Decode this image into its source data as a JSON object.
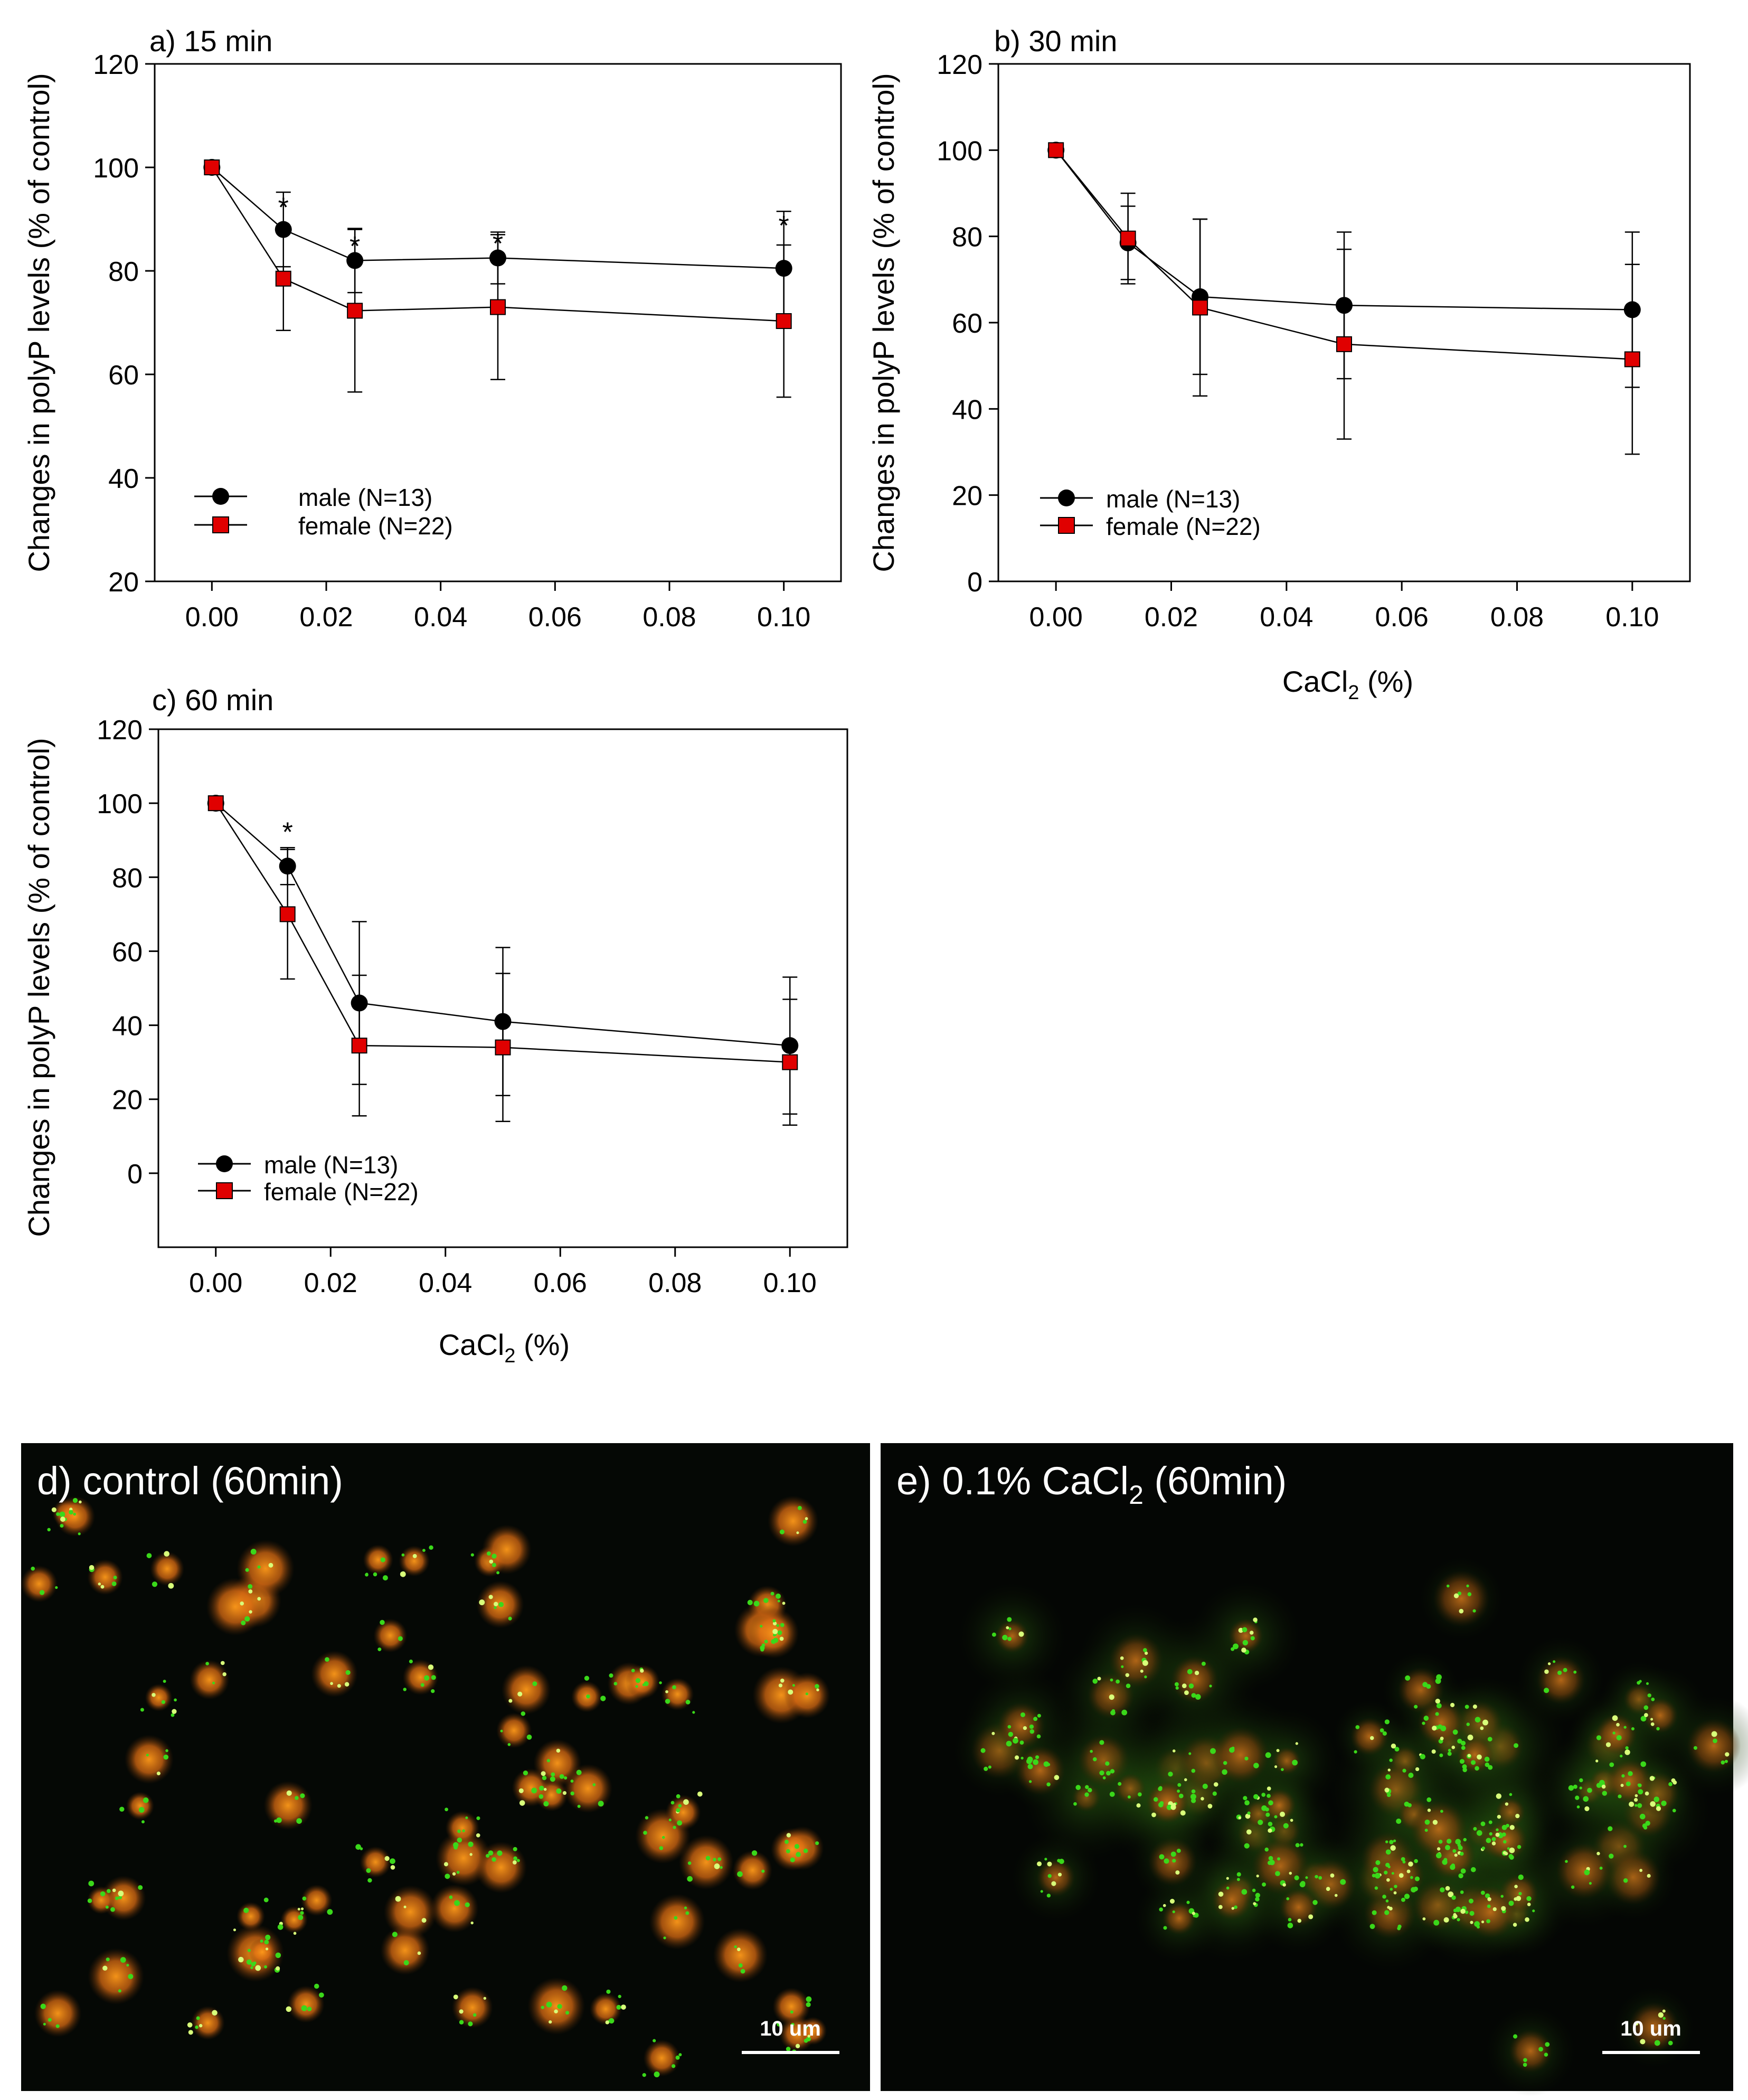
{
  "chart_data": [
    {
      "type": "line",
      "panel_label": "a) 15 min",
      "xlabel": "",
      "ylabel": "Changes in polyP levels (% of control)",
      "xlim": [
        -0.01,
        0.11
      ],
      "ylim": [
        20,
        120
      ],
      "xticks": [
        "0.00",
        "0.02",
        "0.04",
        "0.06",
        "0.08",
        "0.10"
      ],
      "yticks": [
        "20",
        "40",
        "60",
        "80",
        "100",
        "120"
      ],
      "x": [
        0,
        0.0125,
        0.025,
        0.05,
        0.1
      ],
      "series": [
        {
          "name": "male (N=13)",
          "marker": "circle",
          "color": "#000000",
          "values": [
            100,
            88,
            82,
            82.5,
            80.5
          ],
          "err": [
            0,
            7.2,
            6.2,
            5,
            11
          ]
        },
        {
          "name": "female (N=22)",
          "marker": "square",
          "color": "#e00000",
          "values": [
            100,
            78.5,
            72.3,
            73,
            70.3
          ],
          "err": [
            0,
            10,
            15.7,
            14,
            14.7
          ]
        }
      ],
      "annotations": [
        {
          "x": 0.0125,
          "y": 92.5,
          "text": "*"
        },
        {
          "x": 0.025,
          "y": 85,
          "text": "*"
        },
        {
          "x": 0.05,
          "y": 85.5,
          "text": "*"
        },
        {
          "x": 0.1,
          "y": 89,
          "text": "*"
        }
      ],
      "legend": "bottom-left"
    },
    {
      "type": "line",
      "panel_label": "b) 30 min",
      "xlabel": "CaCl2 (%)",
      "ylabel": "Changes in polyP levels (% of control)",
      "xlim": [
        -0.01,
        0.11
      ],
      "ylim": [
        0,
        120
      ],
      "xticks": [
        "0.00",
        "0.02",
        "0.04",
        "0.06",
        "0.08",
        "0.10"
      ],
      "yticks": [
        "0",
        "20",
        "40",
        "60",
        "80",
        "100",
        "120"
      ],
      "x": [
        0,
        0.0125,
        0.025,
        0.05,
        0.1
      ],
      "series": [
        {
          "name": "male (N=13)",
          "marker": "circle",
          "color": "#000000",
          "values": [
            100,
            78.5,
            66,
            64,
            63
          ],
          "err": [
            0,
            8.5,
            18,
            17,
            18
          ]
        },
        {
          "name": "female (N=22)",
          "marker": "square",
          "color": "#e00000",
          "values": [
            100,
            79.5,
            63.5,
            55,
            51.5
          ],
          "err": [
            0,
            10.5,
            20.5,
            22,
            22
          ]
        }
      ],
      "annotations": [],
      "legend": "bottom-left"
    },
    {
      "type": "line",
      "panel_label": "c) 60 min",
      "xlabel": "CaCl2 (%)",
      "ylabel": "Changes in polyP levels (% of control)",
      "xlim": [
        -0.01,
        0.11
      ],
      "ylim": [
        -20,
        120
      ],
      "xticks": [
        "0.00",
        "0.02",
        "0.04",
        "0.06",
        "0.08",
        "0.10"
      ],
      "yticks": [
        "0",
        "20",
        "40",
        "60",
        "80",
        "100",
        "120"
      ],
      "x": [
        0,
        0.0125,
        0.025,
        0.05,
        0.1
      ],
      "series": [
        {
          "name": "male (N=13)",
          "marker": "circle",
          "color": "#000000",
          "values": [
            100,
            83,
            46,
            41,
            34.5
          ],
          "err": [
            0,
            5,
            22,
            20,
            18.5
          ]
        },
        {
          "name": "female (N=22)",
          "marker": "square",
          "color": "#e00000",
          "values": [
            100,
            70,
            34.5,
            34,
            30
          ],
          "err": [
            0,
            17.5,
            19,
            20,
            17
          ]
        }
      ],
      "annotations": [
        {
          "x": 0.0125,
          "y": 92.5,
          "text": "*"
        }
      ],
      "legend": "bottom-left"
    }
  ],
  "axis_label_parts": {
    "prefix": "CaCl",
    "subscript": "2",
    "suffix": " (%)"
  },
  "micrographs": [
    {
      "label_prefix": "d) control (60min)",
      "scale_bar": "10 um"
    },
    {
      "label_prefix": "e)  0.1% CaCl",
      "label_sub": "2",
      "label_suffix": " (60min)",
      "scale_bar": "10 um"
    }
  ]
}
